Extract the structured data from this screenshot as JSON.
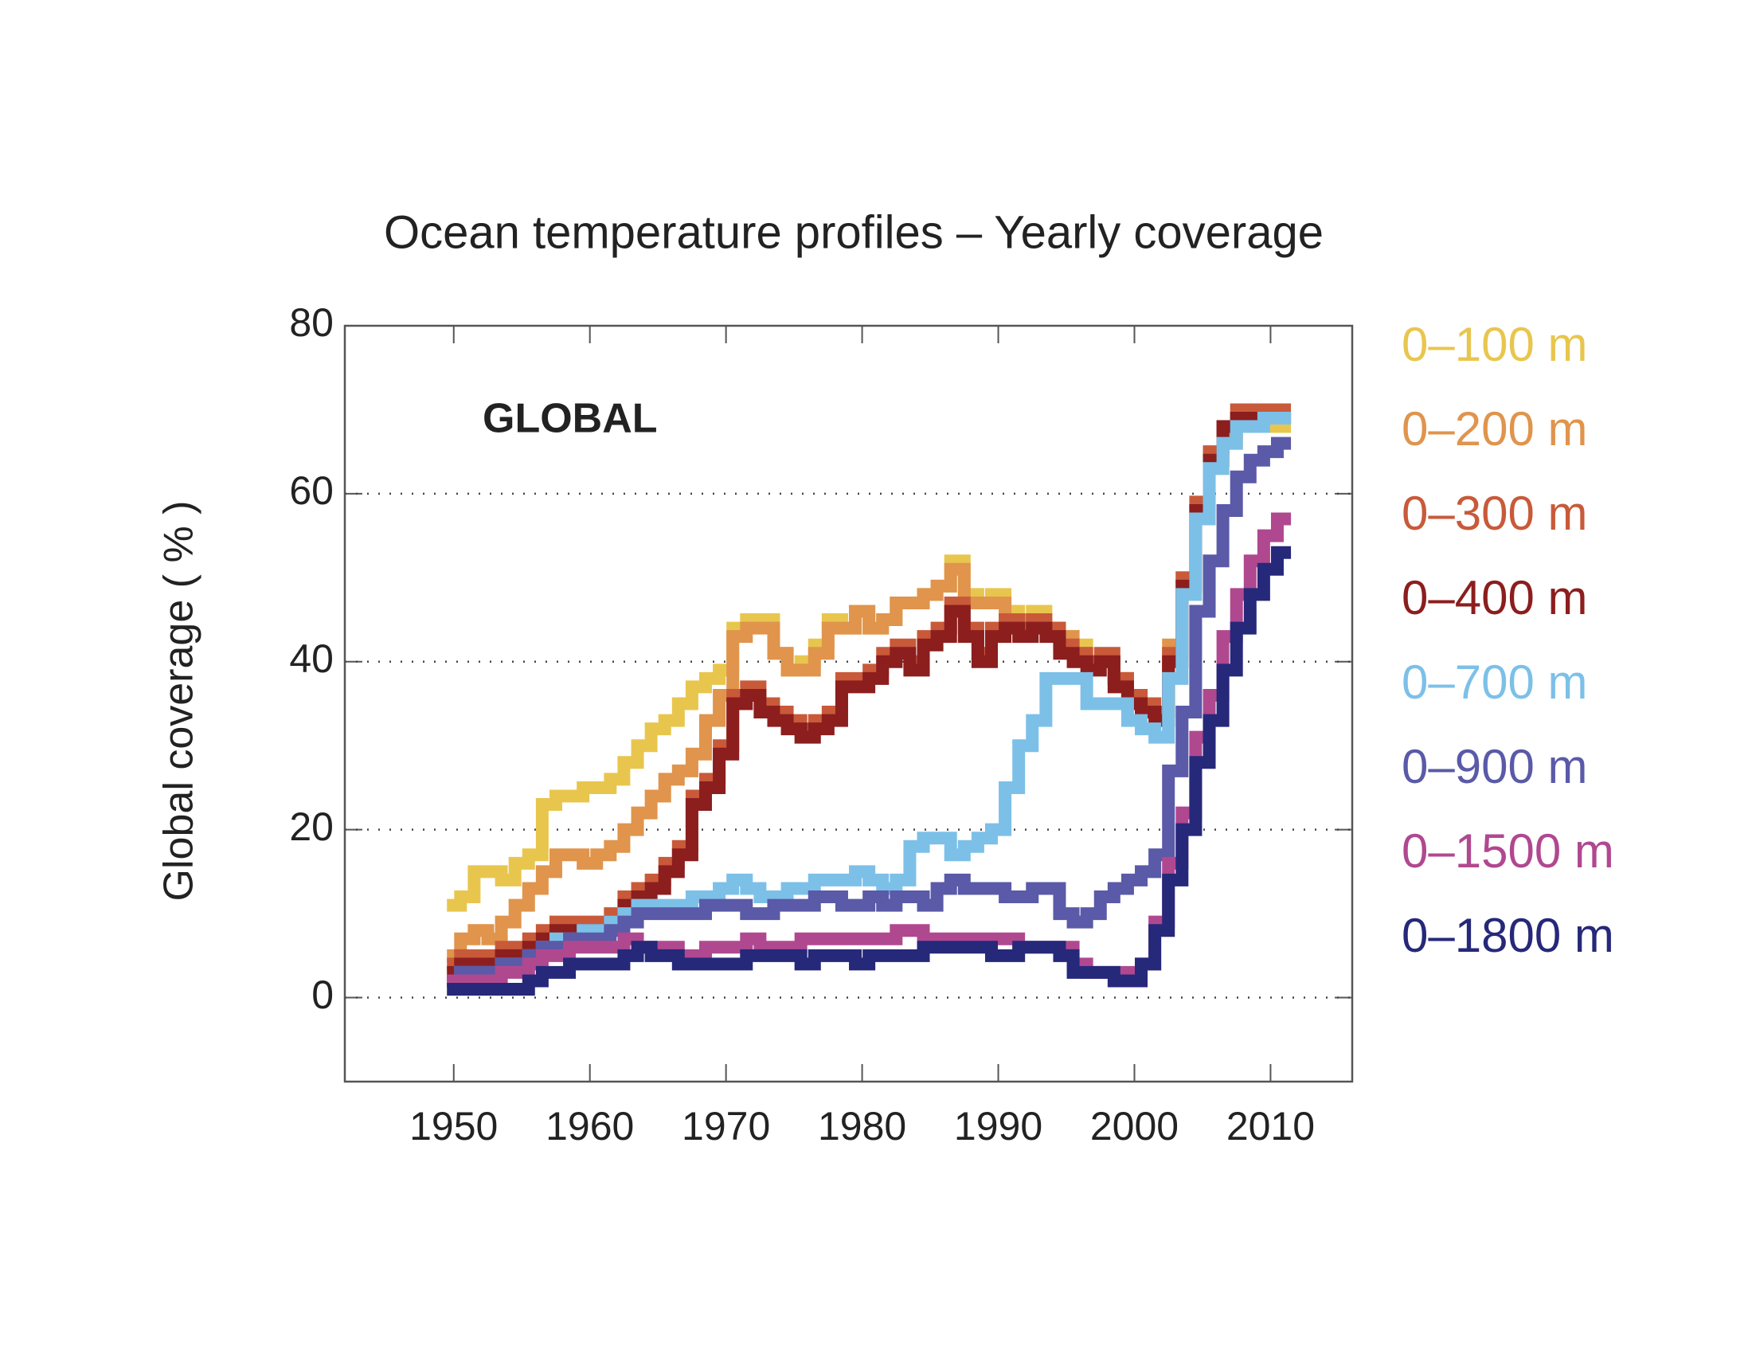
{
  "chart_data": {
    "type": "step-line",
    "title": "Ocean temperature profiles – Yearly coverage",
    "annotation": "GLOBAL",
    "y_label": "Global coverage ( % )",
    "x": [
      1950,
      1951,
      1952,
      1953,
      1954,
      1955,
      1956,
      1957,
      1958,
      1959,
      1960,
      1961,
      1962,
      1963,
      1964,
      1965,
      1966,
      1967,
      1968,
      1969,
      1970,
      1971,
      1972,
      1973,
      1974,
      1975,
      1976,
      1977,
      1978,
      1979,
      1980,
      1981,
      1982,
      1983,
      1984,
      1985,
      1986,
      1987,
      1988,
      1989,
      1990,
      1991,
      1992,
      1993,
      1994,
      1995,
      1996,
      1997,
      1998,
      1999,
      2000,
      2001,
      2002,
      2003,
      2004,
      2005,
      2006,
      2007,
      2008,
      2009,
      2010,
      2011
    ],
    "xlim": [
      1942,
      2016
    ],
    "xticks": [
      1950,
      1960,
      1970,
      1980,
      1990,
      2000,
      2010
    ],
    "ylim": [
      -10,
      80
    ],
    "yticks": [
      0,
      20,
      40,
      60,
      80
    ],
    "grid": true,
    "legend": "right",
    "series": [
      {
        "name": "0–100 m",
        "color": "#e8c64e",
        "values": [
          11,
          12,
          15,
          15,
          14,
          16,
          17,
          23,
          24,
          24,
          25,
          25,
          26,
          28,
          30,
          32,
          33,
          35,
          37,
          38,
          39,
          44,
          45,
          45,
          41,
          39,
          40,
          42,
          45,
          44,
          46,
          44,
          45,
          47,
          47,
          48,
          49,
          52,
          48,
          47,
          48,
          46,
          45,
          46,
          44,
          43,
          42,
          40,
          40,
          38,
          36,
          35,
          34,
          41,
          49,
          58,
          63,
          66,
          68,
          68,
          68,
          68
        ]
      },
      {
        "name": "0–200 m",
        "color": "#e0944c",
        "values": [
          5,
          7,
          8,
          7,
          9,
          11,
          13,
          15,
          17,
          17,
          16,
          17,
          18,
          20,
          22,
          24,
          26,
          27,
          29,
          33,
          36,
          43,
          44,
          44,
          41,
          39,
          39,
          41,
          44,
          44,
          46,
          44,
          45,
          47,
          47,
          48,
          49,
          51,
          47,
          47,
          47,
          45,
          45,
          45,
          44,
          43,
          41,
          40,
          40,
          38,
          36,
          35,
          34,
          42,
          50,
          58,
          64,
          67,
          69,
          69,
          69,
          69
        ]
      },
      {
        "name": "0–300 m",
        "color": "#c85a3a",
        "values": [
          4,
          5,
          5,
          5,
          6,
          6,
          7,
          8,
          9,
          9,
          9,
          9,
          10,
          12,
          13,
          14,
          16,
          18,
          24,
          26,
          30,
          36,
          37,
          35,
          34,
          33,
          32,
          33,
          34,
          38,
          38,
          39,
          41,
          42,
          40,
          43,
          44,
          47,
          44,
          41,
          44,
          45,
          44,
          45,
          44,
          42,
          41,
          40,
          41,
          38,
          36,
          35,
          34,
          41,
          50,
          59,
          65,
          68,
          70,
          70,
          70,
          70
        ]
      },
      {
        "name": "0–400 m",
        "color": "#8c1e1e",
        "values": [
          3,
          4,
          4,
          4,
          5,
          5,
          6,
          7,
          8,
          8,
          8,
          8,
          9,
          11,
          12,
          13,
          15,
          17,
          23,
          25,
          29,
          35,
          36,
          34,
          33,
          32,
          31,
          32,
          33,
          37,
          37,
          38,
          40,
          41,
          39,
          42,
          43,
          46,
          43,
          40,
          43,
          44,
          43,
          44,
          43,
          41,
          40,
          39,
          40,
          37,
          35,
          34,
          33,
          40,
          49,
          58,
          64,
          68,
          69,
          69,
          69,
          69
        ]
      },
      {
        "name": "0–700 m",
        "color": "#7cc0e8",
        "values": [
          2,
          3,
          3,
          3,
          4,
          4,
          5,
          6,
          7,
          7,
          8,
          8,
          9,
          10,
          11,
          11,
          11,
          11,
          12,
          12,
          13,
          14,
          13,
          12,
          12,
          13,
          13,
          14,
          14,
          14,
          15,
          14,
          13,
          14,
          18,
          19,
          19,
          17,
          18,
          19,
          20,
          25,
          30,
          33,
          38,
          38,
          38,
          35,
          35,
          35,
          33,
          32,
          31,
          38,
          48,
          57,
          63,
          66,
          68,
          68,
          69,
          69
        ]
      },
      {
        "name": "0–900 m",
        "color": "#5a5aa8",
        "values": [
          2,
          3,
          3,
          3,
          4,
          4,
          5,
          6,
          6,
          7,
          7,
          7,
          8,
          9,
          10,
          10,
          10,
          10,
          10,
          11,
          11,
          11,
          10,
          10,
          11,
          11,
          11,
          12,
          12,
          11,
          11,
          12,
          11,
          12,
          12,
          11,
          13,
          14,
          13,
          13,
          13,
          12,
          12,
          13,
          13,
          10,
          9,
          10,
          12,
          13,
          14,
          15,
          17,
          27,
          34,
          46,
          52,
          58,
          62,
          64,
          65,
          66
        ]
      },
      {
        "name": "0–1500 m",
        "color": "#b04890",
        "values": [
          2,
          2,
          2,
          2,
          3,
          3,
          4,
          5,
          5,
          6,
          6,
          6,
          6,
          7,
          6,
          6,
          6,
          5,
          5,
          6,
          6,
          6,
          7,
          6,
          6,
          6,
          7,
          7,
          7,
          7,
          7,
          7,
          7,
          8,
          8,
          7,
          7,
          7,
          7,
          7,
          7,
          7,
          6,
          6,
          6,
          6,
          4,
          3,
          3,
          3,
          3,
          4,
          9,
          16,
          22,
          31,
          36,
          43,
          48,
          52,
          55,
          57
        ]
      },
      {
        "name": "0–1800 m",
        "color": "#26287a",
        "values": [
          1,
          1,
          1,
          1,
          1,
          1,
          2,
          3,
          3,
          4,
          4,
          4,
          4,
          5,
          6,
          5,
          5,
          4,
          4,
          4,
          4,
          4,
          5,
          5,
          5,
          5,
          4,
          5,
          5,
          5,
          4,
          5,
          5,
          5,
          5,
          6,
          6,
          6,
          6,
          6,
          5,
          5,
          6,
          6,
          6,
          5,
          3,
          3,
          3,
          2,
          2,
          4,
          8,
          14,
          20,
          28,
          33,
          39,
          44,
          48,
          51,
          53
        ]
      }
    ]
  }
}
